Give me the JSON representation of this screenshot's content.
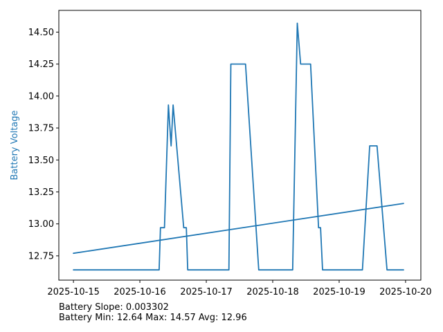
{
  "figure": {
    "background": "#ffffff",
    "accent_color": "#1f77b4",
    "axis_color": "#000000"
  },
  "ylabel": "Battery Voltage",
  "footer": {
    "line1": "Battery Slope: 0.003302",
    "line2": "Battery Min: 12.64 Max: 14.57 Avg: 12.96"
  },
  "chart_data": {
    "type": "line",
    "title": "",
    "xlabel": "",
    "ylabel": "Battery Voltage",
    "ylabel_color": "#1f77b4",
    "grid": false,
    "legend": "none",
    "x_unit": "days since 2025-10-15 00:00",
    "xlim": [
      -0.22,
      5.23
    ],
    "ylim": [
      12.56,
      14.67
    ],
    "x_ticks": [
      {
        "t": 0,
        "label": "2025-10-15"
      },
      {
        "t": 1,
        "label": "2025-10-16"
      },
      {
        "t": 2,
        "label": "2025-10-17"
      },
      {
        "t": 3,
        "label": "2025-10-18"
      },
      {
        "t": 4,
        "label": "2025-10-19"
      },
      {
        "t": 5,
        "label": "2025-10-20"
      }
    ],
    "y_ticks": [
      {
        "v": 12.75,
        "label": "12.75"
      },
      {
        "v": 13.0,
        "label": "13.00"
      },
      {
        "v": 13.25,
        "label": "13.25"
      },
      {
        "v": 13.5,
        "label": "13.50"
      },
      {
        "v": 13.75,
        "label": "13.75"
      },
      {
        "v": 14.0,
        "label": "14.00"
      },
      {
        "v": 14.25,
        "label": "14.25"
      },
      {
        "v": 14.5,
        "label": "14.50"
      }
    ],
    "series": [
      {
        "name": "battery-voltage",
        "color": "#1f77b4",
        "points": [
          [
            0.0,
            12.64
          ],
          [
            1.29,
            12.64
          ],
          [
            1.31,
            12.97
          ],
          [
            1.37,
            12.97
          ],
          [
            1.43,
            13.93
          ],
          [
            1.47,
            13.61
          ],
          [
            1.5,
            13.93
          ],
          [
            1.66,
            12.97
          ],
          [
            1.7,
            12.97
          ],
          [
            1.72,
            12.64
          ],
          [
            2.34,
            12.64
          ],
          [
            2.37,
            14.25
          ],
          [
            2.59,
            14.25
          ],
          [
            2.79,
            12.64
          ],
          [
            3.3,
            12.64
          ],
          [
            3.37,
            14.57
          ],
          [
            3.42,
            14.25
          ],
          [
            3.57,
            14.25
          ],
          [
            3.69,
            12.97
          ],
          [
            3.72,
            12.97
          ],
          [
            3.75,
            12.64
          ],
          [
            4.35,
            12.64
          ],
          [
            4.46,
            13.61
          ],
          [
            4.57,
            13.61
          ],
          [
            4.72,
            12.64
          ],
          [
            4.97,
            12.64
          ]
        ]
      },
      {
        "name": "battery-trend",
        "color": "#1f77b4",
        "points": [
          [
            0.0,
            12.77
          ],
          [
            4.97,
            13.16
          ]
        ]
      }
    ],
    "stats": {
      "slope": 0.003302,
      "min": 12.64,
      "max": 14.57,
      "avg": 12.96
    }
  }
}
